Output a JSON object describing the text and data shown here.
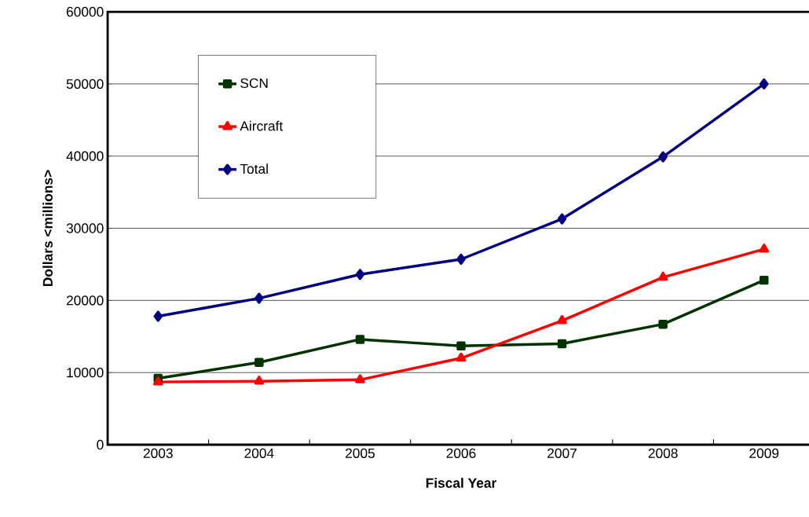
{
  "chart_data": {
    "type": "line",
    "xlabel": "Fiscal Year",
    "ylabel": "Dollars <millions>",
    "categories": [
      "2003",
      "2004",
      "2005",
      "2006",
      "2007",
      "2008",
      "2009"
    ],
    "series": [
      {
        "name": "SCN",
        "color": "#003300",
        "marker": "square",
        "values": [
          9200,
          11400,
          14600,
          13700,
          14000,
          16700,
          22800
        ]
      },
      {
        "name": "Aircraft",
        "color": "#ff0000",
        "marker": "triangle",
        "values": [
          8700,
          8800,
          9000,
          12000,
          17200,
          23200,
          27100
        ]
      },
      {
        "name": "Total",
        "color": "#000080",
        "marker": "diamond",
        "values": [
          17800,
          20300,
          23600,
          25700,
          31300,
          39900,
          50000
        ]
      }
    ],
    "ylim": [
      0,
      60000
    ],
    "yticks": [
      0,
      10000,
      20000,
      30000,
      40000,
      50000,
      60000
    ],
    "grid": "y",
    "legend": "top left",
    "line_style": "solid"
  }
}
